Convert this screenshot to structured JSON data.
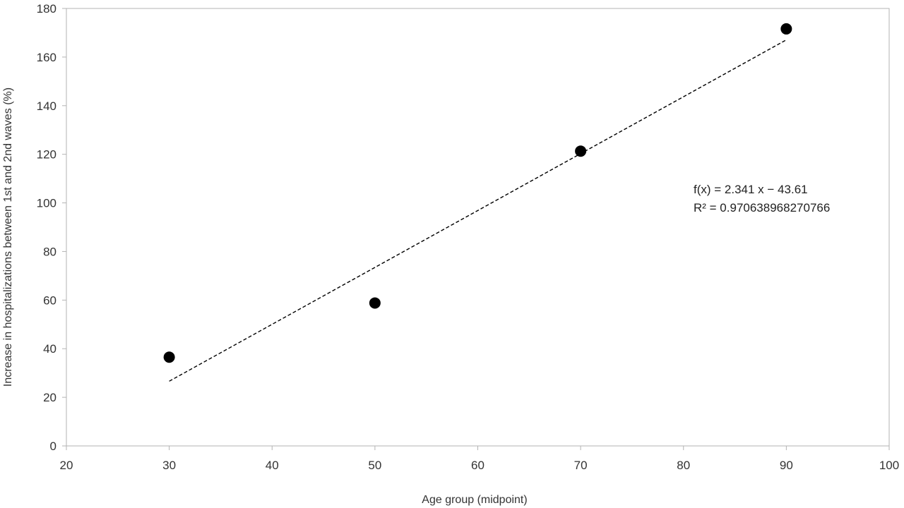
{
  "chart_data": {
    "type": "scatter",
    "title": "",
    "xlabel": "Age group (midpoint)",
    "ylabel": "Increase in hospitalizations between 1st and 2nd waves (%)",
    "xlim": [
      20,
      100
    ],
    "ylim": [
      0,
      180
    ],
    "x_ticks": [
      "20",
      "30",
      "40",
      "50",
      "60",
      "70",
      "80",
      "90",
      "100"
    ],
    "y_ticks": [
      "0",
      "20",
      "40",
      "60",
      "80",
      "100",
      "120",
      "140",
      "160",
      "180"
    ],
    "grid": false,
    "legend": "none",
    "series": [
      {
        "x": [
          30,
          50,
          70,
          90
        ],
        "y": [
          36.5,
          58.8,
          121.3,
          171.6
        ],
        "marker": "circle",
        "color": "#000000"
      }
    ],
    "trendline": {
      "type": "linear",
      "slope": 2.341,
      "intercept": -43.61,
      "x_range": [
        30,
        90
      ],
      "style": "dashed",
      "color": "#000000"
    },
    "annotations": [
      "f(x) = 2.341 x − 43.61",
      "R² = 0.970638968270766"
    ]
  }
}
